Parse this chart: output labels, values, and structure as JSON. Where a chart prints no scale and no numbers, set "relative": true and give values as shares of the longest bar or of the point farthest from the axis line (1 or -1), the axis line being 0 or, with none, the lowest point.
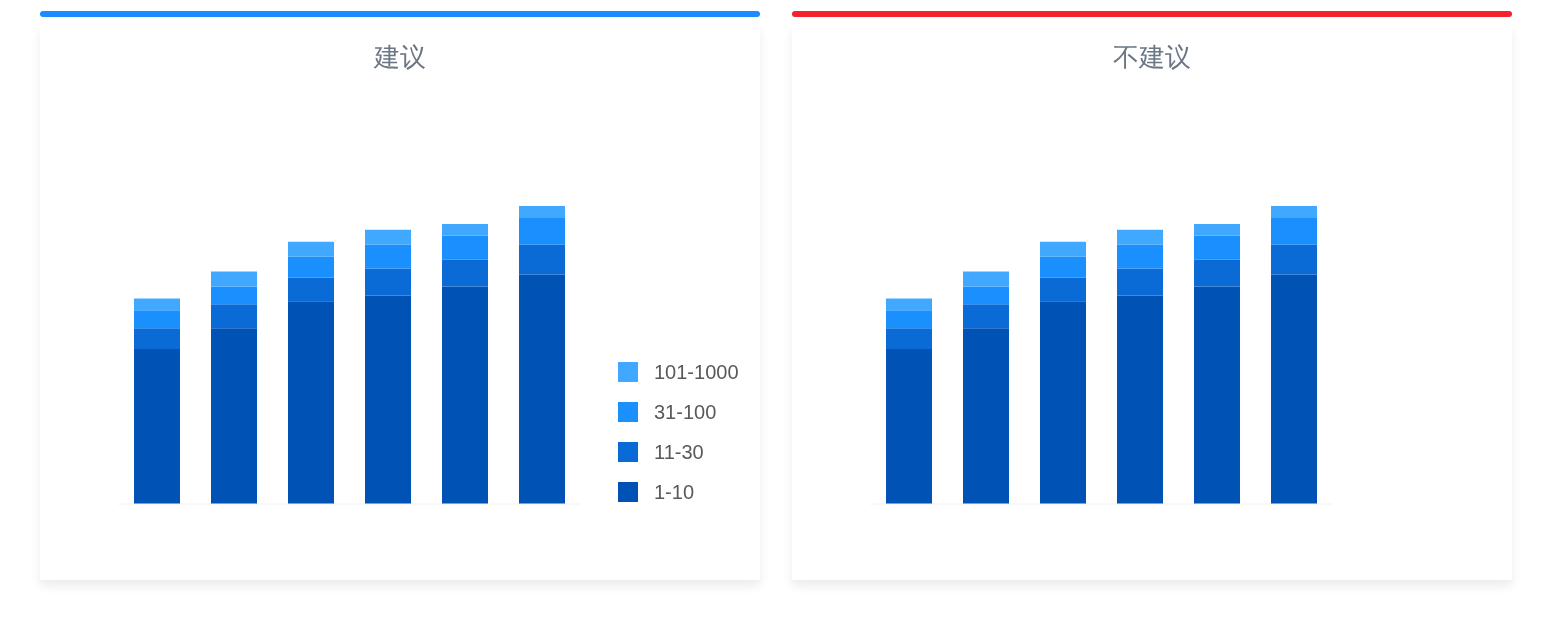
{
  "chart_data": [
    {
      "type": "bar",
      "title": "建议",
      "stacked": true,
      "relative": true,
      "legend": "right",
      "grid": false,
      "categories": [
        null,
        null,
        null,
        null,
        null,
        null
      ],
      "series": [
        {
          "name": "1-10",
          "color": "#0052b4",
          "values": [
            0.52,
            0.59,
            0.68,
            0.7,
            0.73,
            0.77
          ]
        },
        {
          "name": "11-30",
          "color": "#0a6bd6",
          "values": [
            0.07,
            0.08,
            0.08,
            0.09,
            0.09,
            0.1
          ]
        },
        {
          "name": "31-100",
          "color": "#1a90ff",
          "values": [
            0.06,
            0.06,
            0.07,
            0.08,
            0.08,
            0.09
          ]
        },
        {
          "name": "101-1000",
          "color": "#40a9ff",
          "values": [
            0.04,
            0.05,
            0.05,
            0.05,
            0.04,
            0.04
          ]
        }
      ]
    },
    {
      "type": "bar",
      "title": "不建议",
      "stacked": true,
      "relative": true,
      "legend": false,
      "grid": false,
      "categories": [
        null,
        null,
        null,
        null,
        null,
        null
      ],
      "series": [
        {
          "color": "#0052b4",
          "values": [
            0.52,
            0.59,
            0.68,
            0.7,
            0.73,
            0.77
          ]
        },
        {
          "color": "#0a6bd6",
          "values": [
            0.07,
            0.08,
            0.08,
            0.09,
            0.09,
            0.1
          ]
        },
        {
          "color": "#1a90ff",
          "values": [
            0.06,
            0.06,
            0.07,
            0.08,
            0.08,
            0.09
          ]
        },
        {
          "color": "#40a9ff",
          "values": [
            0.04,
            0.05,
            0.05,
            0.05,
            0.04,
            0.04
          ]
        }
      ]
    }
  ]
}
